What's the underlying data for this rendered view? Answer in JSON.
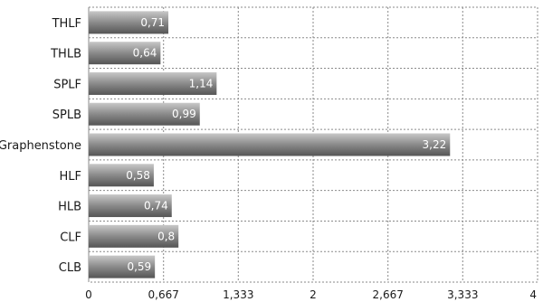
{
  "chart_data": {
    "type": "bar",
    "orientation": "horizontal",
    "categories": [
      "THLF",
      "THLB",
      "SPLF",
      "SPLB",
      "Graphenstone",
      "HLF",
      "HLB",
      "CLF",
      "CLB"
    ],
    "values": [
      0.71,
      0.64,
      1.14,
      0.99,
      3.22,
      0.58,
      0.74,
      0.8,
      0.59
    ],
    "value_labels": [
      "0,71",
      "0,64",
      "1,14",
      "0,99",
      "3,22",
      "0,58",
      "0,74",
      "0,8",
      "0,59"
    ],
    "xlim": [
      0,
      4
    ],
    "x_ticks": [
      0,
      0.667,
      1.333,
      2,
      2.667,
      3.333,
      4
    ],
    "x_tick_labels": [
      "0",
      "0,667",
      "1,333",
      "2",
      "2,667",
      "3,333",
      "4"
    ],
    "grid": true,
    "bar_color_light": "#c8c8c8",
    "bar_color_dark": "#555555"
  }
}
